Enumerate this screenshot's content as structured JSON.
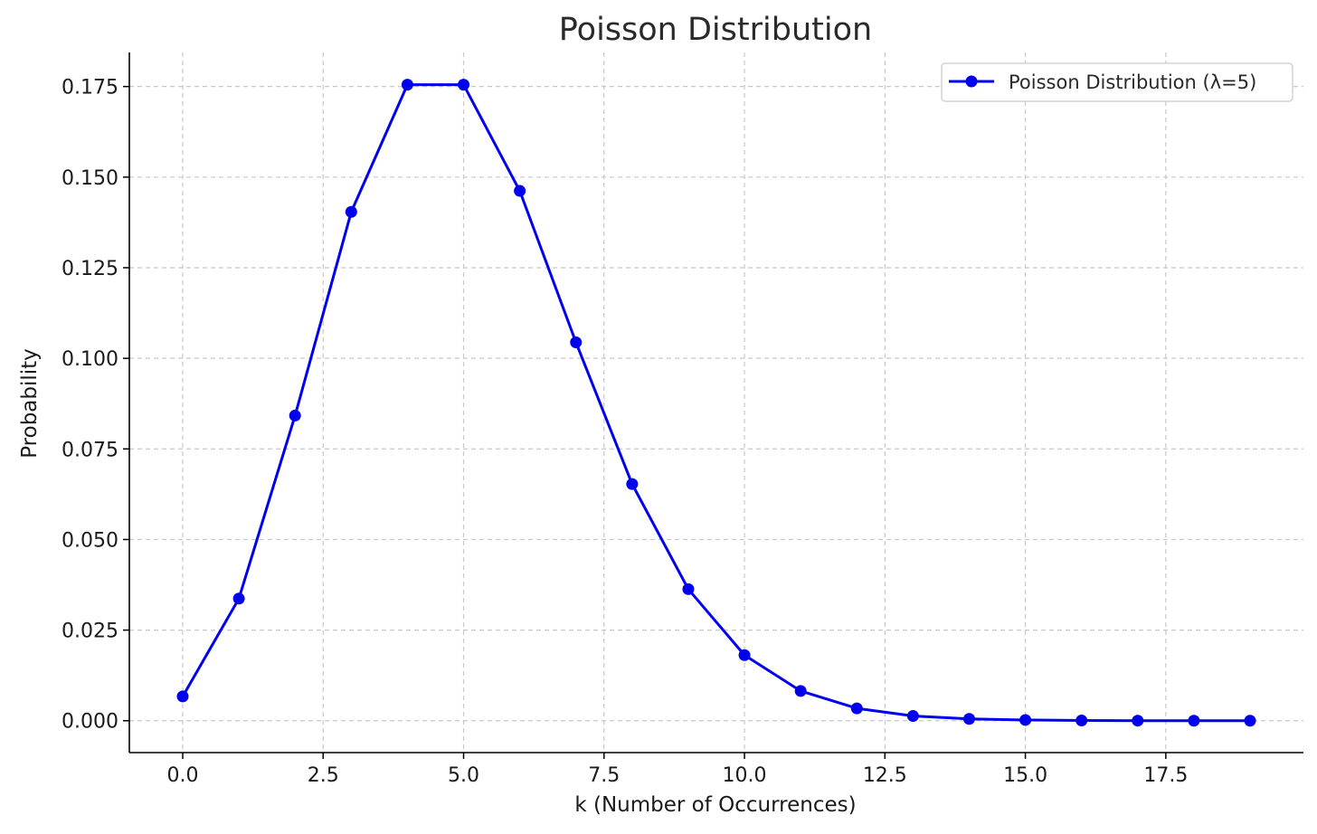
{
  "chart_data": {
    "type": "line",
    "title": "Poisson Distribution",
    "xlabel": "k (Number of Occurrences)",
    "ylabel": "Probability",
    "xlim": [
      -0.95,
      19.95
    ],
    "ylim": [
      -0.0088,
      0.1844
    ],
    "xticks": [
      0.0,
      2.5,
      5.0,
      7.5,
      10.0,
      12.5,
      15.0,
      17.5
    ],
    "xtick_labels": [
      "0.0",
      "2.5",
      "5.0",
      "7.5",
      "10.0",
      "12.5",
      "15.0",
      "17.5"
    ],
    "yticks": [
      0.0,
      0.025,
      0.05,
      0.075,
      0.1,
      0.125,
      0.15,
      0.175
    ],
    "ytick_labels": [
      "0.000",
      "0.025",
      "0.050",
      "0.075",
      "0.100",
      "0.125",
      "0.150",
      "0.175"
    ],
    "grid": true,
    "legend_position": "top-right",
    "series": [
      {
        "name": "Poisson Distribution (λ=5)",
        "color": "#0000ee",
        "marker": "circle",
        "x": [
          0,
          1,
          2,
          3,
          4,
          5,
          6,
          7,
          8,
          9,
          10,
          11,
          12,
          13,
          14,
          15,
          16,
          17,
          18,
          19
        ],
        "values": [
          0.0067,
          0.0337,
          0.0842,
          0.1404,
          0.1755,
          0.1755,
          0.1462,
          0.1044,
          0.0653,
          0.0363,
          0.0181,
          0.0082,
          0.0034,
          0.0013,
          0.0005,
          0.0002,
          5e-05,
          1e-05,
          4e-06,
          1e-06
        ]
      }
    ]
  }
}
